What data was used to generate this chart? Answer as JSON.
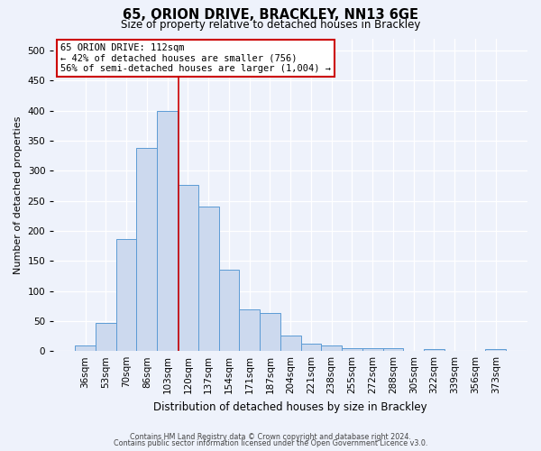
{
  "title": "65, ORION DRIVE, BRACKLEY, NN13 6GE",
  "subtitle": "Size of property relative to detached houses in Brackley",
  "xlabel": "Distribution of detached houses by size in Brackley",
  "ylabel": "Number of detached properties",
  "categories": [
    "36sqm",
    "53sqm",
    "70sqm",
    "86sqm",
    "103sqm",
    "120sqm",
    "137sqm",
    "154sqm",
    "171sqm",
    "187sqm",
    "204sqm",
    "221sqm",
    "238sqm",
    "255sqm",
    "272sqm",
    "288sqm",
    "305sqm",
    "322sqm",
    "339sqm",
    "356sqm",
    "373sqm"
  ],
  "values": [
    9,
    47,
    186,
    338,
    400,
    276,
    240,
    136,
    70,
    63,
    26,
    13,
    9,
    5,
    5,
    5,
    0,
    4,
    0,
    0,
    4
  ],
  "bar_color": "#ccd9ee",
  "bar_edge_color": "#5b9bd5",
  "background_color": "#eef2fb",
  "grid_color": "#ffffff",
  "vline_color": "#cc0000",
  "annotation_text": "65 ORION DRIVE: 112sqm\n← 42% of detached houses are smaller (756)\n56% of semi-detached houses are larger (1,004) →",
  "annotation_box_color": "#ffffff",
  "annotation_box_edge": "#cc0000",
  "footnote1": "Contains HM Land Registry data © Crown copyright and database right 2024.",
  "footnote2": "Contains public sector information licensed under the Open Government Licence v3.0.",
  "ylim_max": 520,
  "yticks": [
    0,
    50,
    100,
    150,
    200,
    250,
    300,
    350,
    400,
    450,
    500
  ],
  "title_fontsize": 10.5,
  "subtitle_fontsize": 8.5,
  "xlabel_fontsize": 8.5,
  "ylabel_fontsize": 8,
  "tick_fontsize": 7.5,
  "annot_fontsize": 7.5
}
